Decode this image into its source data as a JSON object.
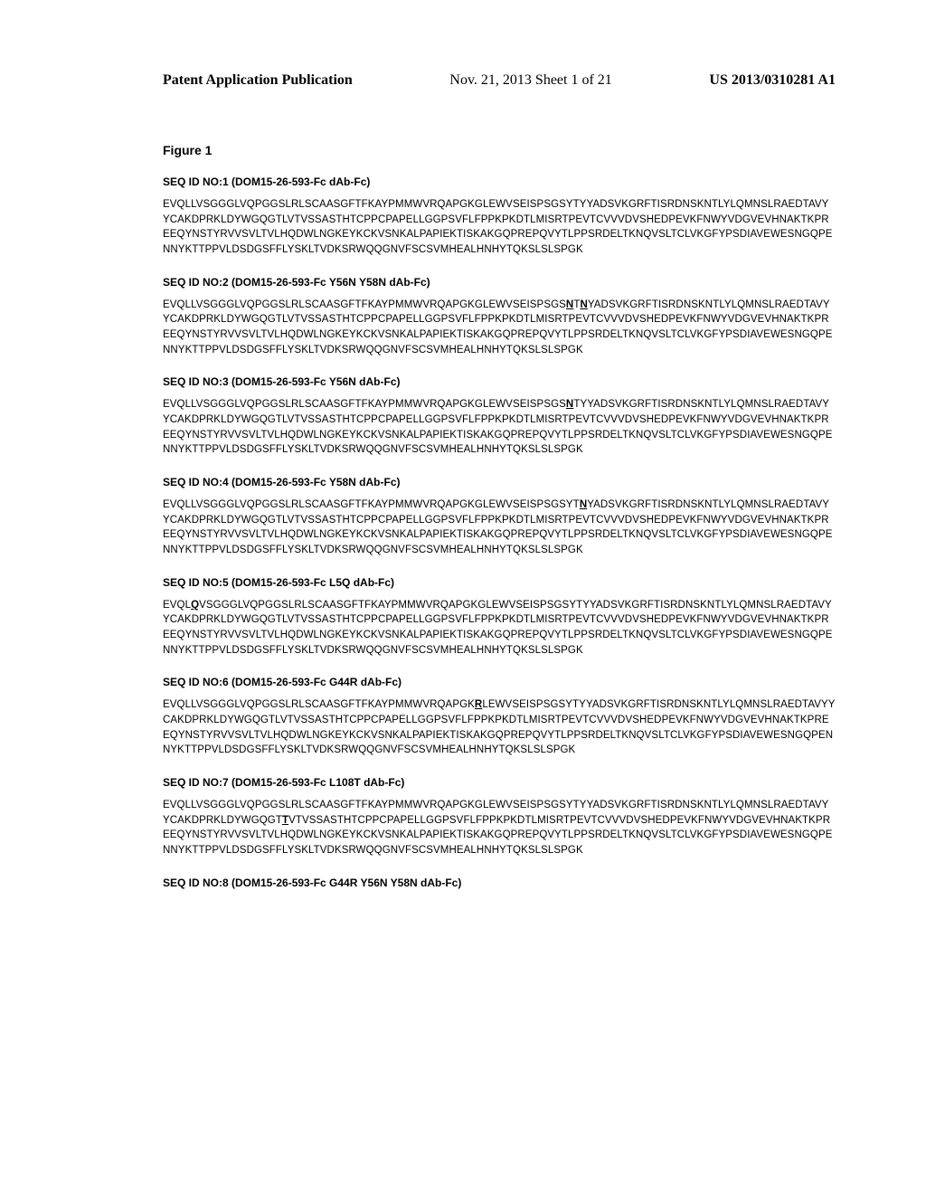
{
  "header": {
    "left": "Patent Application Publication",
    "center": "Nov. 21, 2013  Sheet 1 of 21",
    "right": "US 2013/0310281 A1"
  },
  "figure_title": "Figure 1",
  "sequences": [
    {
      "title": "SEQ ID NO:1 (DOM15-26-593-Fc dAb-Fc)",
      "segments": [
        {
          "t": "EVQLLVSGGGLVQPGGSLRLSCAASGFTFKAYPMMWVRQAPGKGLEWVSEISPSGSYTYYADSVKGRFTISRDNSKNTLYLQMNSLRAEDTAVYYCAKDPRKLDYWGQGTLVTVSSASTHTCPPCPAPELLGGPSVFLFPPKPKDTLMISRTPEVTCVVVDVSHEDPEVKFNWYVDGVEVHNAKTKPREEQYNSTYRVVSVLTVLHQDWLNGKEYKCKVSNKALPAPIEKTISKAKGQPREPQVYTLPPSRDELTKNQVSLTCLVKGFYPSDIAVEWESNGQPENNYKTTPPVLDSDGSFFLYSKLTVDKSRWQQGNVFSCSVMHEALHNHYTQKSLSLSPGK",
          "u": false
        }
      ]
    },
    {
      "title": "SEQ ID NO:2 (DOM15-26-593-Fc Y56N Y58N dAb-Fc)",
      "segments": [
        {
          "t": "EVQLLVSGGGLVQPGGSLRLSCAASGFTFKAYPMMWVRQAPGKGLEWVSEISPSGS",
          "u": false
        },
        {
          "t": "N",
          "u": true
        },
        {
          "t": "T",
          "u": false
        },
        {
          "t": "N",
          "u": true
        },
        {
          "t": "YADSVKGRFTISRDNSKNTLYLQMNSLRAEDTAVYYCAKDPRKLDYWGQGTLVTVSSASTHTCPPCPAPELLGGPSVFLFPPKPKDTLMISRTPEVTCVVVDVSHEDPEVKFNWYVDGVEVHNAKTKPREEQYNSTYRVVSVLTVLHQDWLNGKEYKCKVSNKALPAPIEKTISKAKGQPREPQVYTLPPSRDELTKNQVSLTCLVKGFYPSDIAVEWESNGQPENNYKTTPPVLDSDGSFFLYSKLTVDKSRWQQGNVFSCSVMHEALHNHYTQKSLSLSPGK",
          "u": false
        }
      ]
    },
    {
      "title": "SEQ ID NO:3 (DOM15-26-593-Fc Y56N dAb-Fc)",
      "segments": [
        {
          "t": "EVQLLVSGGGLVQPGGSLRLSCAASGFTFKAYPMMWVRQAPGKGLEWVSEISPSGS",
          "u": false
        },
        {
          "t": "N",
          "u": true
        },
        {
          "t": "TYYADSVKGRFTISRDNSKNTLYLQMNSLRAEDTAVYYCAKDPRKLDYWGQGTLVTVSSASTHTCPPCPAPELLGGPSVFLFPPKPKDTLMISRTPEVTCVVVDVSHEDPEVKFNWYVDGVEVHNAKTKPREEQYNSTYRVVSVLTVLHQDWLNGKEYKCKVSNKALPAPIEKTISKAKGQPREPQVYTLPPSRDELTKNQVSLTCLVKGFYPSDIAVEWESNGQPENNYKTTPPVLDSDGSFFLYSKLTVDKSRWQQGNVFSCSVMHEALHNHYTQKSLSLSPGK",
          "u": false
        }
      ]
    },
    {
      "title": "SEQ ID NO:4 (DOM15-26-593-Fc Y58N dAb-Fc)",
      "segments": [
        {
          "t": "EVQLLVSGGGLVQPGGSLRLSCAASGFTFKAYPMMWVRQAPGKGLEWVSEISPSGSYT",
          "u": false
        },
        {
          "t": "N",
          "u": true
        },
        {
          "t": "YADSVKGRFTISRDNSKNTLYLQMNSLRAEDTAVYYCAKDPRKLDYWGQGTLVTVSSASTHTCPPCPAPELLGGPSVFLFPPKPKDTLMISRTPEVTCVVVDVSHEDPEVKFNWYVDGVEVHNAKTKPREEQYNSTYRVVSVLTVLHQDWLNGKEYKCKVSNKALPAPIEKTISKAKGQPREPQVYTLPPSRDELTKNQVSLTCLVKGFYPSDIAVEWESNGQPENNYKTTPPVLDSDGSFFLYSKLTVDKSRWQQGNVFSCSVMHEALHNHYTQKSLSLSPGK",
          "u": false
        }
      ]
    },
    {
      "title": "SEQ ID NO:5 (DOM15-26-593-Fc L5Q dAb-Fc)",
      "segments": [
        {
          "t": "EVQL",
          "u": false
        },
        {
          "t": "Q",
          "u": true
        },
        {
          "t": "VSGGGLVQPGGSLRLSCAASGFTFKAYPMMWVRQAPGKGLEWVSEISPSGSYTYYADSVKGRFTISRDNSKNTLYLQMNSLRAEDTAVYYCAKDPRKLDYWGQGTLVTVSSASTHTCPPCPAPELLGGPSVFLFPPKPKDTLMISRTPEVTCVVVDVSHEDPEVKFNWYVDGVEVHNAKTKPREEQYNSTYRVVSVLTVLHQDWLNGKEYKCKVSNKALPAPIEKTISKAKGQPREPQVYTLPPSRDELTKNQVSLTCLVKGFYPSDIAVEWESNGQPENNYKTTPPVLDSDGSFFLYSKLTVDKSRWQQGNVFSCSVMHEALHNHYTQKSLSLSPGK",
          "u": false
        }
      ]
    },
    {
      "title": "SEQ ID NO:6 (DOM15-26-593-Fc G44R dAb-Fc)",
      "segments": [
        {
          "t": "EVQLLVSGGGLVQPGGSLRLSCAASGFTFKAYPMMWVRQAPGK",
          "u": false
        },
        {
          "t": "R",
          "u": true
        },
        {
          "t": "LEWVSEISPSGSYTYYADSVKGRFTISRDNSKNTLYLQMNSLRAEDTAVYYCAKDPRKLDYWGQGTLVTVSSASTHTCPPCPAPELLGGPSVFLFPPKPKDTLMISRTPEVTCVVVDVSHEDPEVKFNWYVDGVEVHNAKTKPREEQYNSTYRVVSVLTVLHQDWLNGKEYKCKVSNKALPAPIEKTISKAKGQPREPQVYTLPPSRDELTKNQVSLTCLVKGFYPSDIAVEWESNGQPENNYKTTPPVLDSDGSFFLYSKLTVDKSRWQQGNVFSCSVMHEALHNHYTQKSLSLSPGK",
          "u": false
        }
      ]
    },
    {
      "title": "SEQ ID NO:7 (DOM15-26-593-Fc L108T dAb-Fc)",
      "segments": [
        {
          "t": "EVQLLVSGGGLVQPGGSLRLSCAASGFTFKAYPMMWVRQAPGKGLEWVSEISPSGSYTYYADSVKGRFTISRDNSKNTLYLQMNSLRAEDTAVYYCAKDPRKLDYWGQGT",
          "u": false
        },
        {
          "t": "T",
          "u": true
        },
        {
          "t": "VTVSSASTHTCPPCPAPELLGGPSVFLFPPKPKDTLMISRTPEVTCVVVDVSHEDPEVKFNWYVDGVEVHNAKTKPREEQYNSTYRVVSVLTVLHQDWLNGKEYKCKVSNKALPAPIEKTISKAKGQPREPQVYTLPPSRDELTKNQVSLTCLVKGFYPSDIAVEWESNGQPENNYKTTPPVLDSDGSFFLYSKLTVDKSRWQQGNVFSCSVMHEALHNHYTQKSLSLSPGK",
          "u": false
        }
      ]
    },
    {
      "title": "SEQ ID NO:8 (DOM15-26-593-Fc G44R Y56N Y58N dAb-Fc)",
      "segments": []
    }
  ]
}
